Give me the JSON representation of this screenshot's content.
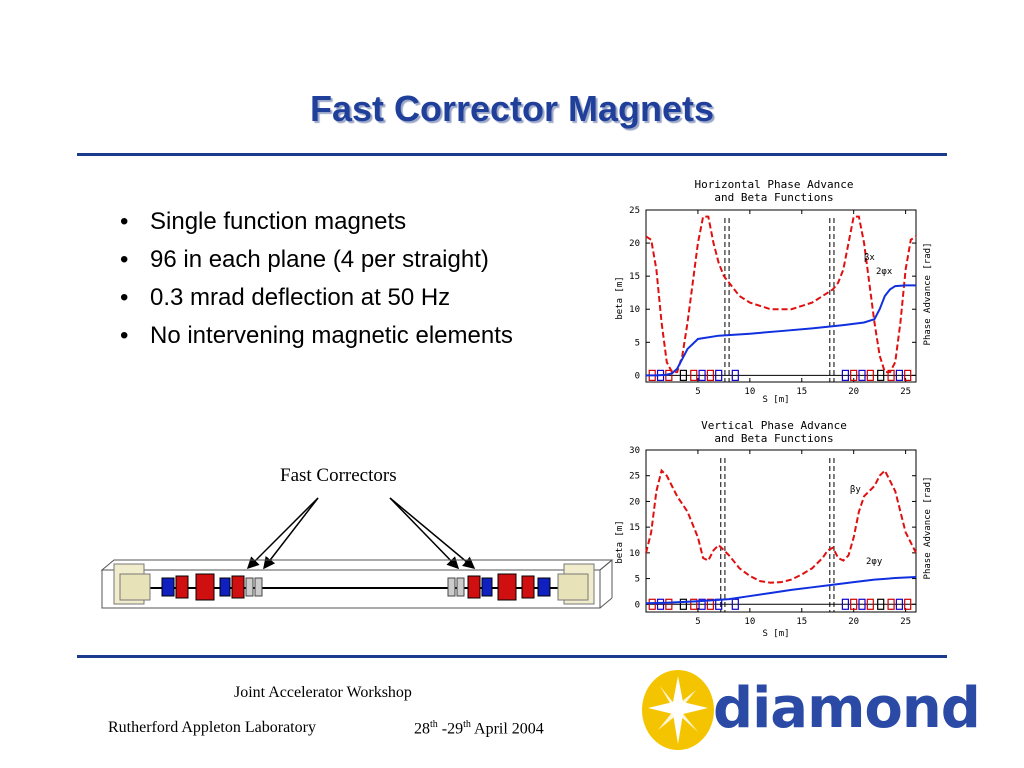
{
  "slide": {
    "title": "Fast Corrector Magnets",
    "bullets": [
      "Single function magnets",
      "96 in each plane (4 per straight)",
      "0.3 mrad deflection at 50 Hz",
      "No intervening magnetic elements"
    ],
    "diagram_caption": "Fast Correctors"
  },
  "footer": {
    "workshop": "Joint Accelerator Workshop",
    "lab": "Rutherford Appleton Laboratory",
    "date_day1": "28",
    "date_sup1": "th",
    "date_day2": " -29",
    "date_sup2": "th",
    "date_rest": " April 2004",
    "logo_text": "diamond"
  },
  "colors": {
    "title": "#1f3f9a",
    "rule": "#1c3a8c",
    "beta": "#e01010",
    "phase": "#1030e0"
  },
  "chart_data": [
    {
      "type": "line",
      "title": "Horizontal Phase Advance and Beta Functions",
      "title_lines": [
        "Horizontal Phase Advance",
        "and Beta Functions"
      ],
      "xlabel": "S [m]",
      "ylabel": "beta [m]",
      "y2label": "Phase Advance [rad]",
      "xlim": [
        0,
        26
      ],
      "ylim": [
        -1,
        25
      ],
      "xticks": [
        "5",
        "10",
        "15",
        "20",
        "25"
      ],
      "yticks": [
        "0",
        "5",
        "10",
        "15",
        "20",
        "25"
      ],
      "markers_x": [
        7.6,
        8,
        17.7,
        18.1
      ],
      "series": [
        {
          "name": "βx",
          "style": "dashed",
          "x": [
            0,
            0.5,
            1,
            1.5,
            2,
            2.5,
            3,
            3.5,
            4,
            4.5,
            5,
            5.5,
            6,
            6.5,
            7,
            7.5,
            8,
            9,
            10,
            11,
            12,
            13,
            14,
            15,
            16,
            17,
            18,
            18.5,
            19,
            19.5,
            20,
            20.5,
            21,
            21.5,
            22,
            22.5,
            23,
            23.5,
            24,
            24.5,
            25,
            25.5,
            26
          ],
          "y": [
            21,
            20.5,
            16,
            8,
            2,
            0.5,
            0.5,
            3,
            8,
            14,
            20,
            24,
            24,
            20,
            17,
            15,
            14,
            12,
            11,
            10.5,
            10,
            10,
            10,
            10.5,
            11,
            12,
            13,
            14,
            16,
            20,
            24,
            24,
            20,
            14,
            8,
            3,
            0.5,
            0.5,
            2,
            8,
            16,
            20.5,
            21
          ]
        },
        {
          "name": "2φx",
          "style": "solid",
          "x": [
            0,
            1,
            2,
            2.5,
            3,
            3.5,
            4,
            5,
            7,
            10,
            13,
            16,
            19,
            21,
            22,
            22.5,
            23,
            23.5,
            24,
            25,
            26
          ],
          "y": [
            0,
            0,
            0.1,
            0.3,
            1,
            2.5,
            4,
            5.5,
            6,
            6.3,
            6.7,
            7.1,
            7.6,
            8,
            8.5,
            10,
            12,
            13,
            13.5,
            13.6,
            13.6
          ]
        }
      ],
      "labels": [
        "βx",
        "2φx"
      ]
    },
    {
      "type": "line",
      "title": "Vertical Phase Advance and Beta Functions",
      "title_lines": [
        "Vertical Phase Advance",
        "and Beta Functions"
      ],
      "xlabel": "S [m]",
      "ylabel": "beta [m]",
      "y2label": "Phase Advance [rad]",
      "xlim": [
        0,
        26
      ],
      "ylim": [
        -1.5,
        30
      ],
      "xticks": [
        "5",
        "10",
        "15",
        "20",
        "25"
      ],
      "yticks": [
        "0",
        "5",
        "10",
        "15",
        "20",
        "25",
        "30"
      ],
      "markers_x": [
        7.2,
        7.6,
        17.7,
        18.1
      ],
      "series": [
        {
          "name": "βy",
          "style": "dashed",
          "x": [
            0,
            0.5,
            1,
            1.5,
            2,
            2.5,
            3,
            4,
            5,
            5.5,
            6,
            6.5,
            7,
            7.5,
            8,
            9,
            10,
            11,
            12,
            13,
            14,
            15,
            16,
            17,
            17.5,
            18,
            18.5,
            19,
            19.5,
            20,
            20.5,
            21,
            22,
            22.5,
            23,
            23.5,
            24,
            25,
            26
          ],
          "y": [
            10,
            14,
            22,
            26,
            25,
            23,
            21,
            18,
            13,
            9,
            8.5,
            10.5,
            11.5,
            10.5,
            9.5,
            7,
            5.5,
            4.5,
            4.2,
            4.3,
            4.8,
            5.8,
            7,
            9,
            10.5,
            11,
            9,
            8.5,
            9.5,
            13,
            18,
            21,
            23,
            25,
            26,
            24,
            22,
            14,
            10
          ]
        },
        {
          "name": "2φy",
          "style": "solid",
          "x": [
            0,
            2,
            5,
            8,
            10,
            12,
            14,
            16,
            18,
            20,
            22,
            24,
            26
          ],
          "y": [
            0.2,
            0.3,
            0.6,
            1,
            1.6,
            2.2,
            2.8,
            3.3,
            3.8,
            4.3,
            4.8,
            5.1,
            5.3
          ]
        }
      ],
      "labels": [
        "βy",
        "2φy"
      ]
    }
  ]
}
